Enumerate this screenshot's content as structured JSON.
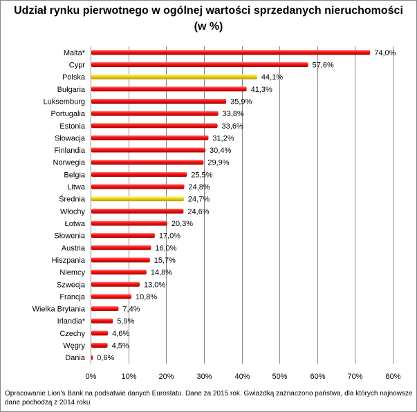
{
  "chart_data": {
    "type": "bar",
    "orientation": "horizontal",
    "title_line1": "Udział rynku pierwotnego w ogólnej wartości sprzedanych nieruchomości",
    "title_line2": "(w %)",
    "categories": [
      "Malta*",
      "Cypr",
      "Polska",
      "Bułgaria",
      "Luksemburg",
      "Portugalia",
      "Estonia",
      "Słowacja",
      "Finlandia",
      "Norwegia",
      "Belgia",
      "Litwa",
      "Średnia",
      "Włochy",
      "Łotwa",
      "Słowenia",
      "Austria",
      "Hiszpania",
      "Niemcy",
      "Szwecja",
      "Francja",
      "Wielka Brytania",
      "Irlandia*",
      "Czechy",
      "Węgry",
      "Dania"
    ],
    "values": [
      74.0,
      57.6,
      44.1,
      41.3,
      35.9,
      33.8,
      33.6,
      31.2,
      30.4,
      29.9,
      25.5,
      24.8,
      24.7,
      24.6,
      20.3,
      17.0,
      16.0,
      15.7,
      14.8,
      13.0,
      10.8,
      7.4,
      5.9,
      4.6,
      4.5,
      0.6
    ],
    "value_labels": [
      "74,0%",
      "57,6%",
      "44,1%",
      "41,3%",
      "35,9%",
      "33,8%",
      "33,6%",
      "31,2%",
      "30,4%",
      "29,9%",
      "25,5%",
      "24,8%",
      "24,7%",
      "24,6%",
      "20,3%",
      "17,0%",
      "16,0%",
      "15,7%",
      "14,8%",
      "13,0%",
      "10,8%",
      "7,4%",
      "5,9%",
      "4,6%",
      "4,5%",
      "0,6%"
    ],
    "highlighted": [
      "Polska",
      "Średnia"
    ],
    "xlim": [
      0,
      80
    ],
    "x_ticks": [
      0,
      10,
      20,
      30,
      40,
      50,
      60,
      70,
      80
    ],
    "x_tick_labels": [
      "0%",
      "10%",
      "20%",
      "30%",
      "40%",
      "50%",
      "60%",
      "70%",
      "80%"
    ],
    "grid": "vertical",
    "legend": "none",
    "colors": {
      "bar": "#e00000",
      "bar_highlight": "#e8d000",
      "grid": "#868686"
    }
  },
  "footnote": "Opracowanie Lion's Bank na podsatwie danych Eurostatu. Dane za 2015 rok. Gwiazdką zaznaczono państwa, dla których najnowsze dane pochodzą z 2014 roku"
}
